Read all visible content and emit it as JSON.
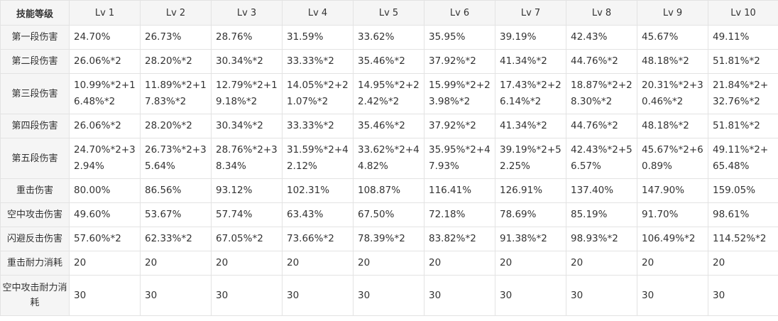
{
  "header": {
    "corner": "技能等级",
    "levels": [
      "Lv 1",
      "Lv 2",
      "Lv 3",
      "Lv 4",
      "Lv 5",
      "Lv 6",
      "Lv 7",
      "Lv 8",
      "Lv 9",
      "Lv 10"
    ]
  },
  "rows": [
    {
      "label": "第一段伤害",
      "values": [
        "24.70%",
        "26.73%",
        "28.76%",
        "31.59%",
        "33.62%",
        "35.95%",
        "39.19%",
        "42.43%",
        "45.67%",
        "49.11%"
      ]
    },
    {
      "label": "第二段伤害",
      "values": [
        "26.06%*2",
        "28.20%*2",
        "30.34%*2",
        "33.33%*2",
        "35.46%*2",
        "37.92%*2",
        "41.34%*2",
        "44.76%*2",
        "48.18%*2",
        "51.81%*2"
      ]
    },
    {
      "label": "第三段伤害",
      "values": [
        "10.99%*2+16.48%*2",
        "11.89%*2+17.83%*2",
        "12.79%*2+19.18%*2",
        "14.05%*2+21.07%*2",
        "14.95%*2+22.42%*2",
        "15.99%*2+23.98%*2",
        "17.43%*2+26.14%*2",
        "18.87%*2+28.30%*2",
        "20.31%*2+30.46%*2",
        "21.84%*2+32.76%*2"
      ]
    },
    {
      "label": "第四段伤害",
      "values": [
        "26.06%*2",
        "28.20%*2",
        "30.34%*2",
        "33.33%*2",
        "35.46%*2",
        "37.92%*2",
        "41.34%*2",
        "44.76%*2",
        "48.18%*2",
        "51.81%*2"
      ]
    },
    {
      "label": "第五段伤害",
      "values": [
        "24.70%*2+32.94%",
        "26.73%*2+35.64%",
        "28.76%*2+38.34%",
        "31.59%*2+42.12%",
        "33.62%*2+44.82%",
        "35.95%*2+47.93%",
        "39.19%*2+52.25%",
        "42.43%*2+56.57%",
        "45.67%*2+60.89%",
        "49.11%*2+65.48%"
      ]
    },
    {
      "label": "重击伤害",
      "values": [
        "80.00%",
        "86.56%",
        "93.12%",
        "102.31%",
        "108.87%",
        "116.41%",
        "126.91%",
        "137.40%",
        "147.90%",
        "159.05%"
      ]
    },
    {
      "label": "空中攻击伤害",
      "values": [
        "49.60%",
        "53.67%",
        "57.74%",
        "63.43%",
        "67.50%",
        "72.18%",
        "78.69%",
        "85.19%",
        "91.70%",
        "98.61%"
      ]
    },
    {
      "label": "闪避反击伤害",
      "values": [
        "57.60%*2",
        "62.33%*2",
        "67.05%*2",
        "73.66%*2",
        "78.39%*2",
        "83.82%*2",
        "91.38%*2",
        "98.93%*2",
        "106.49%*2",
        "114.52%*2"
      ]
    },
    {
      "label": "重击耐力消耗",
      "values": [
        "20",
        "20",
        "20",
        "20",
        "20",
        "20",
        "20",
        "20",
        "20",
        "20"
      ]
    },
    {
      "label": "空中攻击耐力消耗",
      "values": [
        "30",
        "30",
        "30",
        "30",
        "30",
        "30",
        "30",
        "30",
        "30",
        "30"
      ]
    }
  ]
}
